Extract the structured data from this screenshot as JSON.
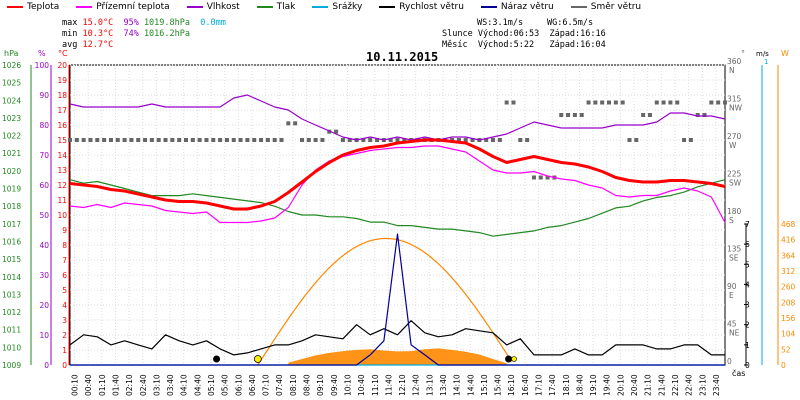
{
  "legend": [
    {
      "label": "Teplota",
      "color": "#ff0000"
    },
    {
      "label": "Přízemní teplota",
      "color": "#ff00ff"
    },
    {
      "label": "Vlhkost",
      "color": "#9900cc"
    },
    {
      "label": "Tlak",
      "color": "#228822"
    },
    {
      "label": "Srážky",
      "color": "#00aadd"
    },
    {
      "label": "Rychlost větru",
      "color": "#000000"
    },
    {
      "label": "Náraz větru",
      "color": "#000099"
    },
    {
      "label": "Směr větru",
      "color": "#666666"
    }
  ],
  "stats": {
    "max_label": "max",
    "max_temp": "15.0°C",
    "max_hum": "95%",
    "max_press": "1019.8hPa",
    "max_rain": "0.0mm",
    "min_label": "min",
    "min_temp": "10.3°C",
    "min_hum": "74%",
    "min_press": "1016.2hPa",
    "avg_label": "avg",
    "avg_temp": "12.7°C",
    "ws": "WS:3.1m/s",
    "wg": "WG:6.5m/s",
    "sun": "Slunce Východ:06:53  Západ:16:16",
    "moon": "Měsíc  Východ:5:22   Západ:16:04"
  },
  "title": "10.11.2015",
  "axes": {
    "hpa_unit": "hPa",
    "pct_unit": "%",
    "temp_unit": "°C",
    "deg_unit": "°",
    "ms_unit": "m/s",
    "mm_unit": "mm",
    "w_unit": "W",
    "time_unit": "čas",
    "hpa_ticks": [
      "1026",
      "1025",
      "1024",
      "1023",
      "1022",
      "1021",
      "1020",
      "1019",
      "1018",
      "1017",
      "1016",
      "1015",
      "1014",
      "1013",
      "1012",
      "1011",
      "1010",
      "1009"
    ],
    "pct_ticks": [
      "100",
      "90",
      "80",
      "70",
      "60",
      "50",
      "40",
      "30",
      "20",
      "10",
      "0"
    ],
    "temp_ticks": [
      "20",
      "19",
      "18",
      "17",
      "16",
      "15",
      "14",
      "13",
      "12",
      "11",
      "10",
      "9",
      "8",
      "7",
      "6",
      "5",
      "4",
      "3",
      "2",
      "1",
      "0"
    ],
    "dir_ticks": [
      {
        "v": "360",
        "d": "N"
      },
      {
        "v": "315",
        "d": "NW"
      },
      {
        "v": "270",
        "d": "W"
      },
      {
        "v": "225",
        "d": "SW"
      },
      {
        "v": "180",
        "d": "S"
      },
      {
        "v": "135",
        "d": "SE"
      },
      {
        "v": "90",
        "d": "E"
      },
      {
        "v": "45",
        "d": "NE"
      },
      {
        "v": "0",
        "d": ""
      }
    ],
    "ms_ticks": [
      "7",
      "6",
      "5",
      "4",
      "3",
      "2",
      "1",
      "0"
    ],
    "mm_top": "1",
    "w_ticks": [
      "468",
      "416",
      "364",
      "312",
      "260",
      "208",
      "156",
      "104",
      "52",
      "0"
    ],
    "time_ticks": [
      "00:10",
      "00:40",
      "01:10",
      "01:40",
      "02:10",
      "02:40",
      "03:10",
      "03:40",
      "04:10",
      "04:40",
      "05:10",
      "05:40",
      "06:10",
      "06:40",
      "07:10",
      "07:40",
      "08:10",
      "08:40",
      "09:10",
      "09:40",
      "10:10",
      "10:40",
      "11:10",
      "11:40",
      "12:10",
      "12:40",
      "13:10",
      "13:40",
      "14:10",
      "14:40",
      "15:10",
      "15:40",
      "16:10",
      "16:40",
      "17:10",
      "17:40",
      "18:10",
      "18:40",
      "19:10",
      "19:40",
      "20:10",
      "20:40",
      "21:10",
      "21:40",
      "22:10",
      "22:40",
      "23:10",
      "23:40"
    ]
  },
  "chart_data": {
    "type": "line",
    "x": [
      0,
      0.5,
      1,
      1.5,
      2,
      2.5,
      3,
      3.5,
      4,
      4.5,
      5,
      5.5,
      6,
      6.5,
      7,
      7.5,
      8,
      8.5,
      9,
      9.5,
      10,
      10.5,
      11,
      11.5,
      12,
      12.5,
      13,
      13.5,
      14,
      14.5,
      15,
      15.5,
      16,
      16.5,
      17,
      17.5,
      18,
      18.5,
      19,
      19.5,
      20,
      20.5,
      21,
      21.5,
      22,
      22.5,
      23,
      23.5,
      24
    ],
    "series": [
      {
        "name": "Teplota",
        "unit": "°C",
        "color": "#ff0000",
        "values": [
          12.1,
          12.0,
          11.9,
          11.7,
          11.6,
          11.4,
          11.2,
          11.0,
          10.9,
          10.9,
          10.8,
          10.6,
          10.4,
          10.4,
          10.6,
          10.9,
          11.5,
          12.2,
          12.9,
          13.5,
          14.0,
          14.3,
          14.5,
          14.6,
          14.8,
          14.9,
          15.0,
          15.0,
          14.9,
          14.8,
          14.4,
          13.9,
          13.5,
          13.7,
          13.9,
          13.7,
          13.5,
          13.4,
          13.2,
          12.9,
          12.5,
          12.3,
          12.2,
          12.2,
          12.3,
          12.3,
          12.2,
          12.1,
          11.9
        ]
      },
      {
        "name": "Přízemní teplota",
        "unit": "°C",
        "color": "#ff00ff",
        "values": [
          10.6,
          10.5,
          10.7,
          10.5,
          10.8,
          10.7,
          10.6,
          10.3,
          10.2,
          10.1,
          10.2,
          9.5,
          9.5,
          9.5,
          9.6,
          9.8,
          10.5,
          12.0,
          13.0,
          13.6,
          13.9,
          14.1,
          14.3,
          14.4,
          14.5,
          14.5,
          14.6,
          14.6,
          14.4,
          14.2,
          13.6,
          13.0,
          12.8,
          12.8,
          12.9,
          12.6,
          12.4,
          12.3,
          12.0,
          11.8,
          11.3,
          11.2,
          11.3,
          11.3,
          11.6,
          11.8,
          11.6,
          11.2,
          9.5
        ]
      },
      {
        "name": "Vlhkost",
        "unit": "%",
        "color": "#9900cc",
        "values": [
          87,
          86,
          86,
          86,
          86,
          86,
          87,
          86,
          86,
          86,
          86,
          86,
          89,
          90,
          88,
          86,
          85,
          82,
          80,
          78,
          76,
          75,
          76,
          75,
          76,
          75,
          76,
          75,
          76,
          76,
          75,
          76,
          77,
          79,
          81,
          80,
          79,
          79,
          79,
          79,
          80,
          80,
          80,
          81,
          84,
          84,
          83,
          83,
          82
        ]
      },
      {
        "name": "Tlak",
        "unit": "hPa",
        "color": "#228822",
        "values": [
          1019.5,
          1019.3,
          1019.4,
          1019.2,
          1019.0,
          1018.8,
          1018.6,
          1018.6,
          1018.6,
          1018.7,
          1018.6,
          1018.5,
          1018.4,
          1018.3,
          1018.2,
          1018.0,
          1017.7,
          1017.5,
          1017.5,
          1017.4,
          1017.4,
          1017.3,
          1017.1,
          1017.1,
          1016.9,
          1016.9,
          1016.8,
          1016.7,
          1016.7,
          1016.6,
          1016.5,
          1016.3,
          1016.4,
          1016.5,
          1016.6,
          1016.8,
          1016.9,
          1017.1,
          1017.3,
          1017.6,
          1017.9,
          1018.0,
          1018.3,
          1018.5,
          1018.6,
          1018.8,
          1019.1,
          1019.3,
          1019.5
        ]
      },
      {
        "name": "Rychlost větru",
        "unit": "m/s",
        "color": "#000000",
        "values": [
          1.0,
          1.5,
          1.4,
          1.0,
          1.2,
          1.0,
          0.8,
          1.5,
          1.2,
          1.0,
          1.2,
          0.8,
          0.5,
          0.6,
          0.8,
          1.0,
          1.0,
          1.2,
          1.5,
          1.4,
          1.3,
          2.0,
          1.5,
          1.8,
          1.5,
          2.2,
          1.6,
          1.4,
          1.5,
          1.8,
          1.7,
          1.6,
          1.0,
          1.3,
          0.5,
          0.5,
          0.5,
          0.8,
          0.5,
          0.5,
          1.0,
          1.0,
          1.0,
          0.8,
          0.8,
          1.0,
          1.0,
          0.5,
          0.5
        ]
      },
      {
        "name": "Náraz větru",
        "unit": "m/s",
        "color": "#000099",
        "values": [
          0,
          0,
          0,
          0,
          0,
          0,
          0,
          0,
          0,
          0,
          0,
          0,
          0,
          0,
          0,
          0,
          0,
          0,
          0,
          0,
          0,
          0,
          0.5,
          1.2,
          6.5,
          1.0,
          0.5,
          0,
          0,
          0,
          0,
          0,
          0,
          0,
          0,
          0,
          0,
          0,
          0,
          0,
          0,
          0,
          0,
          0,
          0,
          0,
          0,
          0,
          0
        ]
      },
      {
        "name": "Srážky",
        "unit": "mm",
        "color": "#00aadd",
        "values": [
          0,
          0,
          0,
          0,
          0,
          0,
          0,
          0,
          0,
          0,
          0,
          0,
          0,
          0,
          0,
          0,
          0,
          0,
          0,
          0,
          0,
          0,
          0,
          0,
          0,
          0,
          0,
          0,
          0,
          0,
          0,
          0,
          0,
          0,
          0,
          0,
          0,
          0,
          0,
          0,
          0,
          0,
          0,
          0,
          0,
          0,
          0,
          0,
          0
        ]
      }
    ],
    "solar_theoretical": {
      "unit": "W",
      "color": "#ff8800",
      "sunrise": 6.883,
      "sunset": 16.267,
      "peak": 420
    },
    "solar_measured": {
      "unit": "W",
      "color": "#ff8800",
      "x": [
        8,
        8.5,
        9,
        9.5,
        10,
        10.5,
        11,
        11.5,
        12,
        12.5,
        13,
        13.5,
        14,
        14.5,
        15,
        15.5,
        16
      ],
      "values": [
        8,
        20,
        32,
        40,
        46,
        50,
        52,
        48,
        45,
        46,
        52,
        55,
        50,
        44,
        35,
        20,
        6
      ]
    },
    "wind_direction": {
      "unit": "°",
      "color": "#666666",
      "values": [
        270,
        270,
        270,
        270,
        270,
        270,
        270,
        270,
        270,
        270,
        270,
        270,
        270,
        270,
        270,
        270,
        290,
        270,
        270,
        280,
        270,
        270,
        270,
        270,
        270,
        270,
        270,
        270,
        270,
        270,
        270,
        270,
        315,
        270,
        225,
        225,
        300,
        300,
        315,
        315,
        315,
        270,
        300,
        315,
        315,
        270,
        300,
        315,
        315
      ]
    },
    "xlim": [
      0,
      24
    ],
    "temp_ylim": [
      0,
      20
    ],
    "hum_ylim": [
      0,
      100
    ],
    "press_ylim": [
      1009,
      1026
    ],
    "wind_ylim": [
      0,
      7
    ],
    "solar_ylim": [
      0,
      468
    ],
    "dir_ylim": [
      0,
      360
    ]
  }
}
